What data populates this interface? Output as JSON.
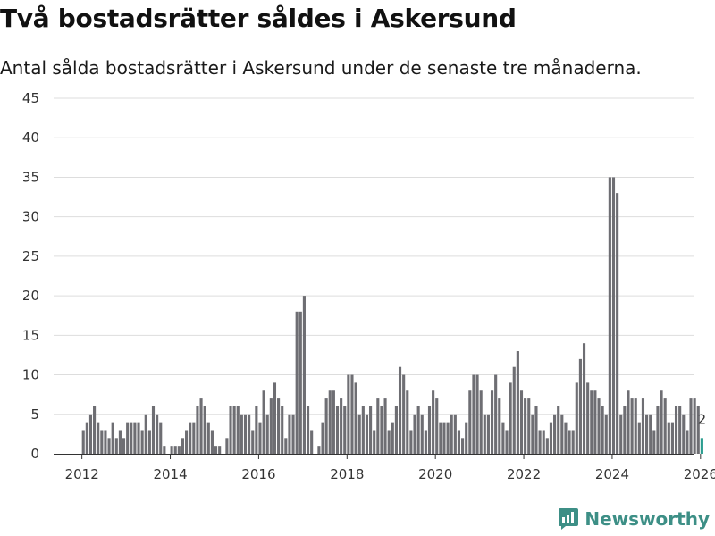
{
  "header": {
    "title": "Två bostadsrätter såldes i Askersund",
    "subtitle": "Antal sålda bostadsrätter i Askersund under de senaste tre månaderna."
  },
  "brand": {
    "name": "Newsworthy",
    "color": "#3d8f86"
  },
  "chart_data": {
    "type": "bar",
    "x_start": "2012-01",
    "frequency": "monthly",
    "ylim": [
      0,
      45
    ],
    "yticks": [
      0,
      5,
      10,
      15,
      20,
      25,
      30,
      35,
      40,
      45
    ],
    "xticks": [
      "2012",
      "2014",
      "2016",
      "2018",
      "2020",
      "2022",
      "2024",
      "2026"
    ],
    "grid": true,
    "bar_color": "#6e6e73",
    "highlight_color": "#2a9d8f",
    "highlight_last": true,
    "last_value_label": "2",
    "values": [
      3,
      4,
      5,
      6,
      4,
      3,
      3,
      2,
      4,
      2,
      3,
      2,
      4,
      4,
      4,
      4,
      3,
      5,
      3,
      6,
      5,
      4,
      1,
      0,
      1,
      1,
      1,
      2,
      3,
      4,
      4,
      6,
      7,
      6,
      4,
      3,
      1,
      1,
      0,
      2,
      6,
      6,
      6,
      5,
      5,
      5,
      3,
      6,
      4,
      8,
      5,
      7,
      9,
      7,
      6,
      2,
      5,
      5,
      18,
      18,
      20,
      6,
      3,
      0,
      1,
      4,
      7,
      8,
      8,
      6,
      7,
      6,
      10,
      10,
      9,
      5,
      6,
      5,
      6,
      3,
      7,
      6,
      7,
      3,
      4,
      6,
      11,
      10,
      8,
      3,
      5,
      6,
      5,
      3,
      6,
      8,
      7,
      4,
      4,
      4,
      5,
      5,
      3,
      2,
      4,
      8,
      10,
      10,
      8,
      5,
      5,
      8,
      10,
      7,
      4,
      3,
      9,
      11,
      13,
      8,
      7,
      7,
      5,
      6,
      3,
      3,
      2,
      4,
      5,
      6,
      5,
      4,
      3,
      3,
      9,
      12,
      14,
      9,
      8,
      8,
      7,
      6,
      5,
      35,
      35,
      33,
      5,
      6,
      8,
      7,
      7,
      4,
      7,
      5,
      5,
      3,
      6,
      8,
      7,
      4,
      4,
      6,
      6,
      5,
      3,
      7,
      7,
      6,
      2
    ]
  }
}
